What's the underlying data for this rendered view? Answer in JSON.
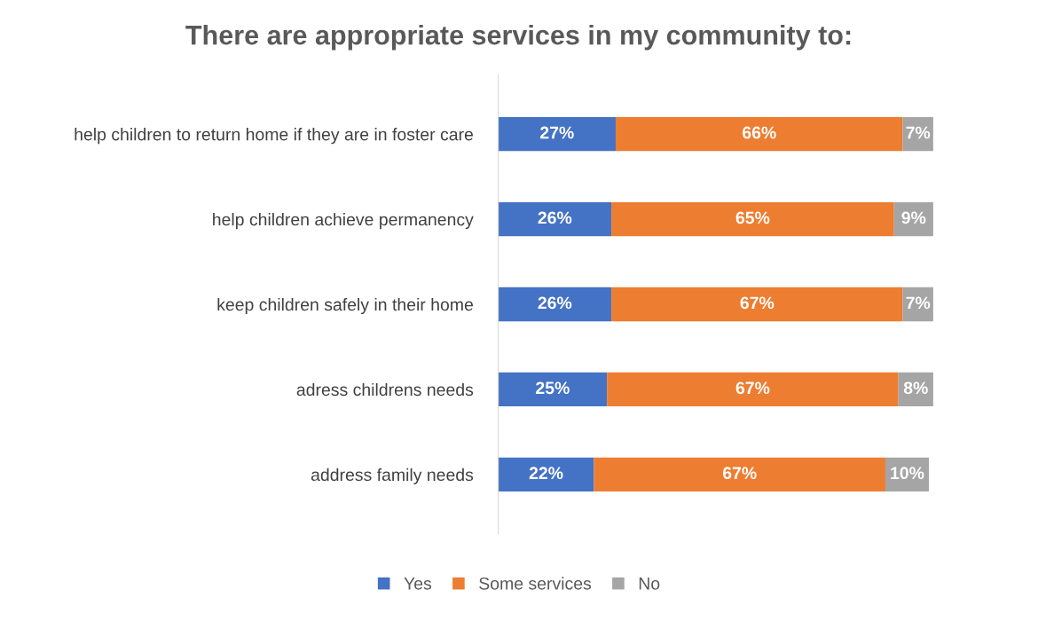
{
  "chart_data": {
    "type": "bar",
    "orientation": "horizontal",
    "stacked": true,
    "title": "There are appropriate services in my community to:",
    "categories": [
      "help children to return home if they are in foster care",
      "help children achieve permanency",
      "keep children safely in their home",
      "adress childrens needs",
      "address family needs"
    ],
    "series": [
      {
        "name": "Yes",
        "color": "#4472c4",
        "values": [
          27,
          26,
          26,
          25,
          22
        ],
        "value_labels": [
          "27%",
          "26%",
          "26%",
          "25%",
          "22%"
        ]
      },
      {
        "name": "Some services",
        "color": "#ed7d31",
        "values": [
          66,
          65,
          67,
          67,
          67
        ],
        "value_labels": [
          "66%",
          "65%",
          "67%",
          "67%",
          "67%"
        ]
      },
      {
        "name": "No",
        "color": "#a5a5a5",
        "values": [
          7,
          9,
          7,
          8,
          10
        ],
        "value_labels": [
          "7%",
          "9%",
          "7%",
          "8%",
          "10%"
        ]
      }
    ],
    "legend": "bottom",
    "grid": false,
    "tick_labels": "y"
  }
}
